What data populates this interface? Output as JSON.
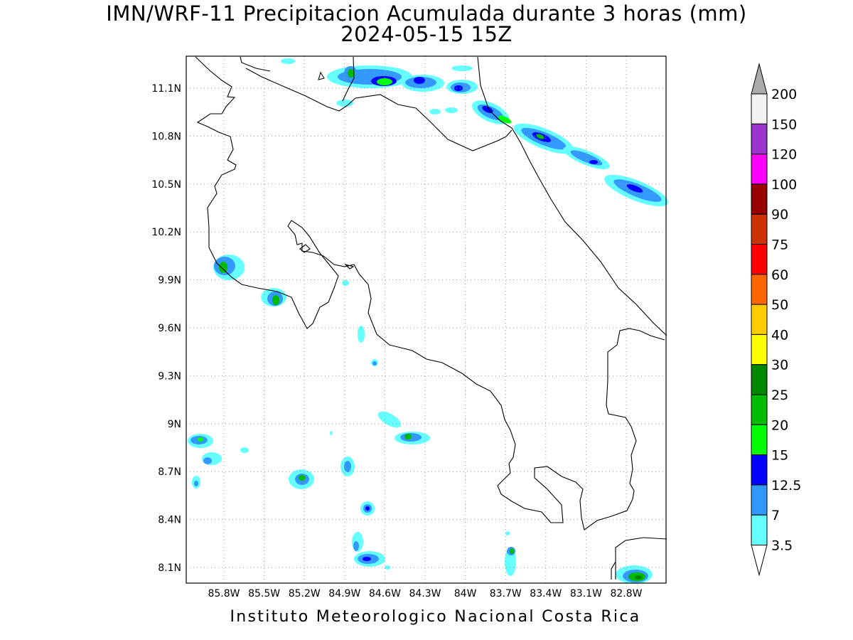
{
  "map": {
    "title": "IMN/WRF-11 Precipitacion Acumulada durante 3 horas (mm)",
    "subtitle": "2024-05-15 15Z",
    "credit": "Instituto Meteorologico Nacional Costa Rica",
    "lon_labels": [
      "85.8W",
      "85.5W",
      "85.2W",
      "84.9W",
      "84.6W",
      "84.3W",
      "84W",
      "83.7W",
      "83.4W",
      "83.1W",
      "82.8W"
    ],
    "lat_labels": [
      "11.1N",
      "10.8N",
      "10.5N",
      "10.2N",
      "9.9N",
      "9.6N",
      "9.3N",
      "9N",
      "8.7N",
      "8.4N",
      "8.1N"
    ]
  },
  "legend": {
    "labels": [
      "200",
      "150",
      "120",
      "100",
      "90",
      "75",
      "60",
      "50",
      "40",
      "30",
      "25",
      "20",
      "15",
      "12.5",
      "7",
      "3.5"
    ],
    "colors": [
      "#f2f2f2",
      "#9933cc",
      "#ff00ff",
      "#990000",
      "#cc3300",
      "#ff0000",
      "#ff6600",
      "#ffcc00",
      "#ffff00",
      "#008800",
      "#00bb00",
      "#00ff00",
      "#0000ff",
      "#3399ff",
      "#66ffff"
    ],
    "top_arrow_color": "#aaaaaa",
    "bottom_arrow_color": "#ffffff"
  }
}
